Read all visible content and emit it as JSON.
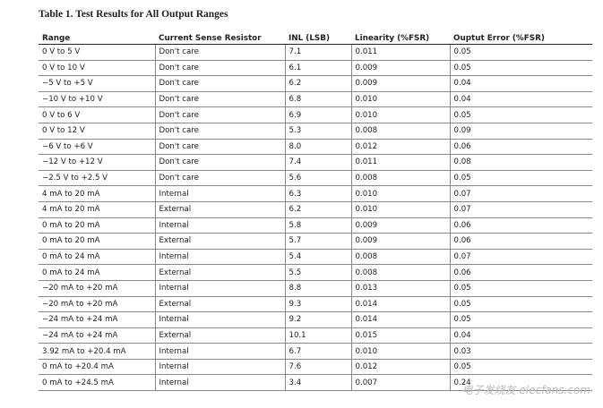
{
  "title": "Table 1. Test Results for All Output Ranges",
  "table": {
    "header": [
      "Range",
      "Current Sense Resistor",
      "INL (LSB)",
      "Linearity (%FSR)",
      "Ouptut Error (%FSR)"
    ],
    "rows": [
      [
        "0 V to 5 V",
        "Don't care",
        "7.1",
        "0.011",
        "0.05"
      ],
      [
        "0 V to 10 V",
        "Don't care",
        "6.1",
        "0.009",
        "0.05"
      ],
      [
        "−5 V to +5 V",
        "Don't care",
        "6.2",
        "0.009",
        "0.04"
      ],
      [
        "−10 V to +10 V",
        "Don't care",
        "6.8",
        "0.010",
        "0.04"
      ],
      [
        "0 V to 6 V",
        "Don't care",
        "6.9",
        "0.010",
        "0.05"
      ],
      [
        "0 V to 12 V",
        "Don't care",
        "5.3",
        "0.008",
        "0.09"
      ],
      [
        "−6 V to +6 V",
        "Don't care",
        "8.0",
        "0.012",
        "0.06"
      ],
      [
        "−12 V to +12 V",
        "Don't care",
        "7.4",
        "0.011",
        "0.08"
      ],
      [
        "−2.5 V to +2.5 V",
        "Don't care",
        "5.6",
        "0.008",
        "0.05"
      ],
      [
        "4 mA to 20 mA",
        "Internal",
        "6.3",
        "0.010",
        "0.07"
      ],
      [
        "4 mA to 20 mA",
        "External",
        "6.2",
        "0.010",
        "0.07"
      ],
      [
        "0 mA to 20 mA",
        "Internal",
        "5.8",
        "0.009",
        "0.06"
      ],
      [
        "0 mA to 20 mA",
        "External",
        "5.7",
        "0.009",
        "0.06"
      ],
      [
        "0 mA to 24 mA",
        "Internal",
        "5.4",
        "0.008",
        "0.07"
      ],
      [
        "0 mA to 24 mA",
        "External",
        "5.5",
        "0.008",
        "0.06"
      ],
      [
        "−20 mA to +20 mA",
        "Internal",
        "8.8",
        "0.013",
        "0.05"
      ],
      [
        "−20 mA to +20 mA",
        "External",
        "9.3",
        "0.014",
        "0.05"
      ],
      [
        "−24 mA to +24 mA",
        "Internal",
        "9.2",
        "0.014",
        "0.05"
      ],
      [
        "−24 mA to +24 mA",
        "External",
        "10.1",
        "0.015",
        "0.04"
      ],
      [
        "3.92 mA to +20.4 mA",
        "Internal",
        "6.7",
        "0.010",
        "0.03"
      ],
      [
        "0 mA to +20.4 mA",
        "Internal",
        "7.6",
        "0.012",
        "0.05"
      ],
      [
        "0 mA to +24.5 mA",
        "Internal",
        "3.4",
        "0.007",
        "0.24"
      ]
    ]
  },
  "watermark": "电子发烧友 elecfans.com"
}
